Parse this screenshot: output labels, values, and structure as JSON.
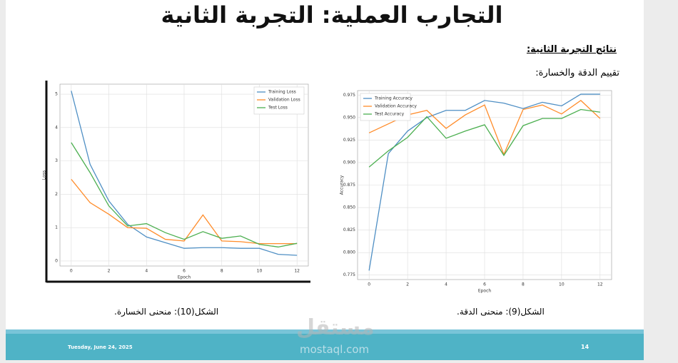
{
  "slide": {
    "title": "التجارب العملية: التجربة الثانية",
    "section": "نتائج التجربة الثانية:",
    "subsection": "تقييم الدقة والخسارة:",
    "caption_left": "الشكل(10): منحنى الخسارة.",
    "caption_right": "الشكل(9): منحنى الدقة.",
    "date": "Tuesday, June 24, 2025",
    "page": "14",
    "watermark": "مستقل",
    "watermark_url": "mostaql.com"
  },
  "chart_data": [
    {
      "type": "line",
      "xlabel": "Epoch",
      "ylabel": "Loss",
      "x": [
        0,
        1,
        2,
        3,
        4,
        5,
        6,
        7,
        8,
        9,
        10,
        11,
        12
      ],
      "xlim": [
        -0.6,
        12.6
      ],
      "xticks": [
        0,
        2,
        4,
        6,
        8,
        10,
        12
      ],
      "ylim": [
        -0.15,
        5.3
      ],
      "yticks": [
        0,
        1,
        2,
        3,
        4,
        5
      ],
      "grid": true,
      "legend": "upper right",
      "series": [
        {
          "name": "Training Loss",
          "color": "#4f8fc4",
          "values": [
            5.1,
            2.9,
            1.8,
            1.1,
            0.72,
            0.55,
            0.38,
            0.4,
            0.4,
            0.38,
            0.38,
            0.2,
            0.17
          ]
        },
        {
          "name": "Validation Loss",
          "color": "#ff8c2a",
          "values": [
            2.45,
            1.75,
            1.4,
            1.0,
            0.98,
            0.65,
            0.6,
            1.38,
            0.6,
            0.58,
            0.52,
            0.52,
            0.52
          ]
        },
        {
          "name": "Test Loss",
          "color": "#4caf50",
          "values": [
            3.55,
            2.65,
            1.65,
            1.05,
            1.12,
            0.85,
            0.65,
            0.88,
            0.68,
            0.75,
            0.5,
            0.42,
            0.53
          ]
        }
      ]
    },
    {
      "type": "line",
      "xlabel": "Epoch",
      "ylabel": "Accuracy",
      "x": [
        0,
        1,
        2,
        3,
        4,
        5,
        6,
        7,
        8,
        9,
        10,
        11,
        12
      ],
      "xlim": [
        -0.6,
        12.6
      ],
      "xticks": [
        0,
        2,
        4,
        6,
        8,
        10,
        12
      ],
      "ylim": [
        0.77,
        0.98
      ],
      "yticks": [
        0.775,
        {
          "value": 0.8,
          "label": "0.800"
        },
        0.825,
        {
          "value": 0.85,
          "label": "0.850"
        },
        0.875,
        {
          "value": 0.9,
          "label": "0.900"
        },
        0.925,
        {
          "value": 0.95,
          "label": "0.950"
        },
        0.975
      ],
      "grid": true,
      "legend": "upper left",
      "series": [
        {
          "name": "Training Accuracy",
          "color": "#4f8fc4",
          "values": [
            0.78,
            0.91,
            0.935,
            0.95,
            0.958,
            0.958,
            0.969,
            0.966,
            0.96,
            0.967,
            0.963,
            0.976,
            0.976
          ]
        },
        {
          "name": "Validation Accuracy",
          "color": "#ff8c2a",
          "values": [
            0.933,
            0.943,
            0.953,
            0.958,
            0.938,
            0.953,
            0.964,
            0.909,
            0.959,
            0.964,
            0.954,
            0.969,
            0.949
          ]
        },
        {
          "name": "Test Accuracy",
          "color": "#4caf50",
          "values": [
            0.895,
            0.913,
            0.928,
            0.951,
            0.927,
            0.935,
            0.942,
            0.908,
            0.941,
            0.949,
            0.949,
            0.959,
            0.956
          ]
        }
      ]
    }
  ]
}
